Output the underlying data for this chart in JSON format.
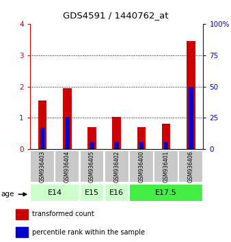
{
  "title": "GDS4591 / 1440762_at",
  "samples": [
    "GSM936403",
    "GSM936404",
    "GSM936405",
    "GSM936402",
    "GSM936400",
    "GSM936401",
    "GSM936406"
  ],
  "red_values": [
    1.55,
    1.95,
    0.7,
    1.02,
    0.7,
    0.8,
    3.47
  ],
  "blue_values": [
    0.68,
    1.02,
    0.22,
    0.22,
    0.22,
    0.22,
    2.0
  ],
  "age_groups": [
    {
      "label": "E14",
      "start": 0,
      "end": 2,
      "color": "#ccffcc"
    },
    {
      "label": "E15",
      "start": 2,
      "end": 3,
      "color": "#ccffcc"
    },
    {
      "label": "E16",
      "start": 3,
      "end": 4,
      "color": "#ccffcc"
    },
    {
      "label": "E17.5",
      "start": 4,
      "end": 7,
      "color": "#44ee44"
    }
  ],
  "ylim_left": [
    0,
    4
  ],
  "ylim_right": [
    0,
    100
  ],
  "yticks_left": [
    0,
    1,
    2,
    3,
    4
  ],
  "yticks_right": [
    0,
    25,
    50,
    75,
    100
  ],
  "yticklabels_right": [
    "0",
    "25",
    "50",
    "75",
    "100%"
  ],
  "red_color": "#cc0000",
  "blue_color": "#0000cc",
  "sample_bg": "#c8c8c8",
  "legend_red": "transformed count",
  "legend_blue": "percentile rank within the sample"
}
